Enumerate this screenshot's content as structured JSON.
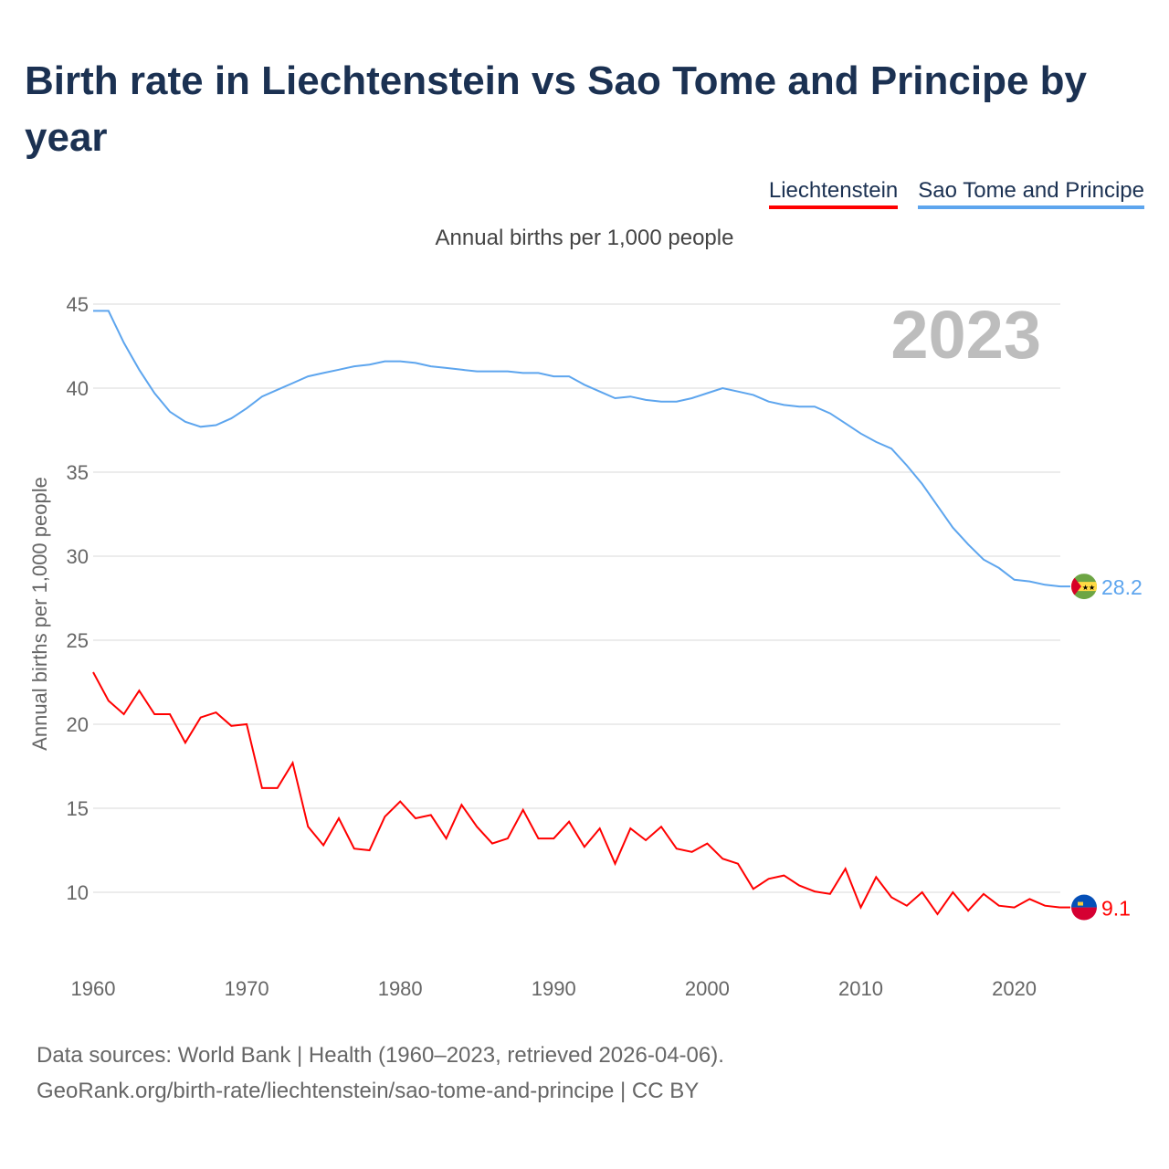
{
  "chart_data": {
    "type": "line",
    "title": "Birth rate in Liechtenstein vs Sao Tome and Principe by year",
    "subtitle": "Annual births per 1,000 people",
    "ylabel": "Annual births per 1,000 people",
    "xlabel": "",
    "year_watermark": "2023",
    "ylim": [
      7,
      45
    ],
    "xlim": [
      1960,
      2023
    ],
    "yticks": [
      10,
      15,
      20,
      25,
      30,
      35,
      40,
      45
    ],
    "xticks": [
      1960,
      1970,
      1980,
      1990,
      2000,
      2010,
      2020
    ],
    "grid": true,
    "legend_position": "top-right",
    "x_start": 1960,
    "series": [
      {
        "name": "Liechtenstein",
        "color": "#ff0000",
        "end_label": "9.1",
        "flag": "liechtenstein",
        "values": [
          23.1,
          21.4,
          20.6,
          22.0,
          20.6,
          20.6,
          18.9,
          20.4,
          20.7,
          19.9,
          20.0,
          16.2,
          16.2,
          17.7,
          13.9,
          12.8,
          14.4,
          12.6,
          12.5,
          14.5,
          15.4,
          14.4,
          14.6,
          13.2,
          15.2,
          13.9,
          12.9,
          13.2,
          14.9,
          13.2,
          13.2,
          14.2,
          12.7,
          13.8,
          11.7,
          13.8,
          13.1,
          13.9,
          12.6,
          12.4,
          12.9,
          12.0,
          11.7,
          10.2,
          10.8,
          11.0,
          10.4,
          10.05,
          9.9,
          11.4,
          9.1,
          10.9,
          9.7,
          9.2,
          10.0,
          8.7,
          10.0,
          8.9,
          9.9,
          9.2,
          9.1,
          9.6,
          9.2,
          9.1
        ]
      },
      {
        "name": "Sao Tome and Principe",
        "color": "#5da5ee",
        "end_label": "28.2",
        "flag": "sao-tome-and-principe",
        "values": [
          44.6,
          44.6,
          42.7,
          41.1,
          39.7,
          38.6,
          38.0,
          37.7,
          37.8,
          38.2,
          38.8,
          39.5,
          39.9,
          40.3,
          40.7,
          40.9,
          41.1,
          41.3,
          41.4,
          41.6,
          41.6,
          41.5,
          41.3,
          41.2,
          41.1,
          41.0,
          41.0,
          41.0,
          40.9,
          40.9,
          40.7,
          40.7,
          40.2,
          39.8,
          39.4,
          39.5,
          39.3,
          39.2,
          39.2,
          39.4,
          39.7,
          40.0,
          39.8,
          39.6,
          39.2,
          39.0,
          38.9,
          38.9,
          38.5,
          37.9,
          37.3,
          36.8,
          36.4,
          35.4,
          34.3,
          33.0,
          31.7,
          30.7,
          29.8,
          29.3,
          28.6,
          28.5,
          28.3,
          28.2
        ]
      }
    ]
  },
  "footer": {
    "line1": "Data sources: World Bank | Health (1960–2023, retrieved 2026-04-06).",
    "line2": "GeoRank.org/birth-rate/liechtenstein/sao-tome-and-principe | CC BY"
  }
}
